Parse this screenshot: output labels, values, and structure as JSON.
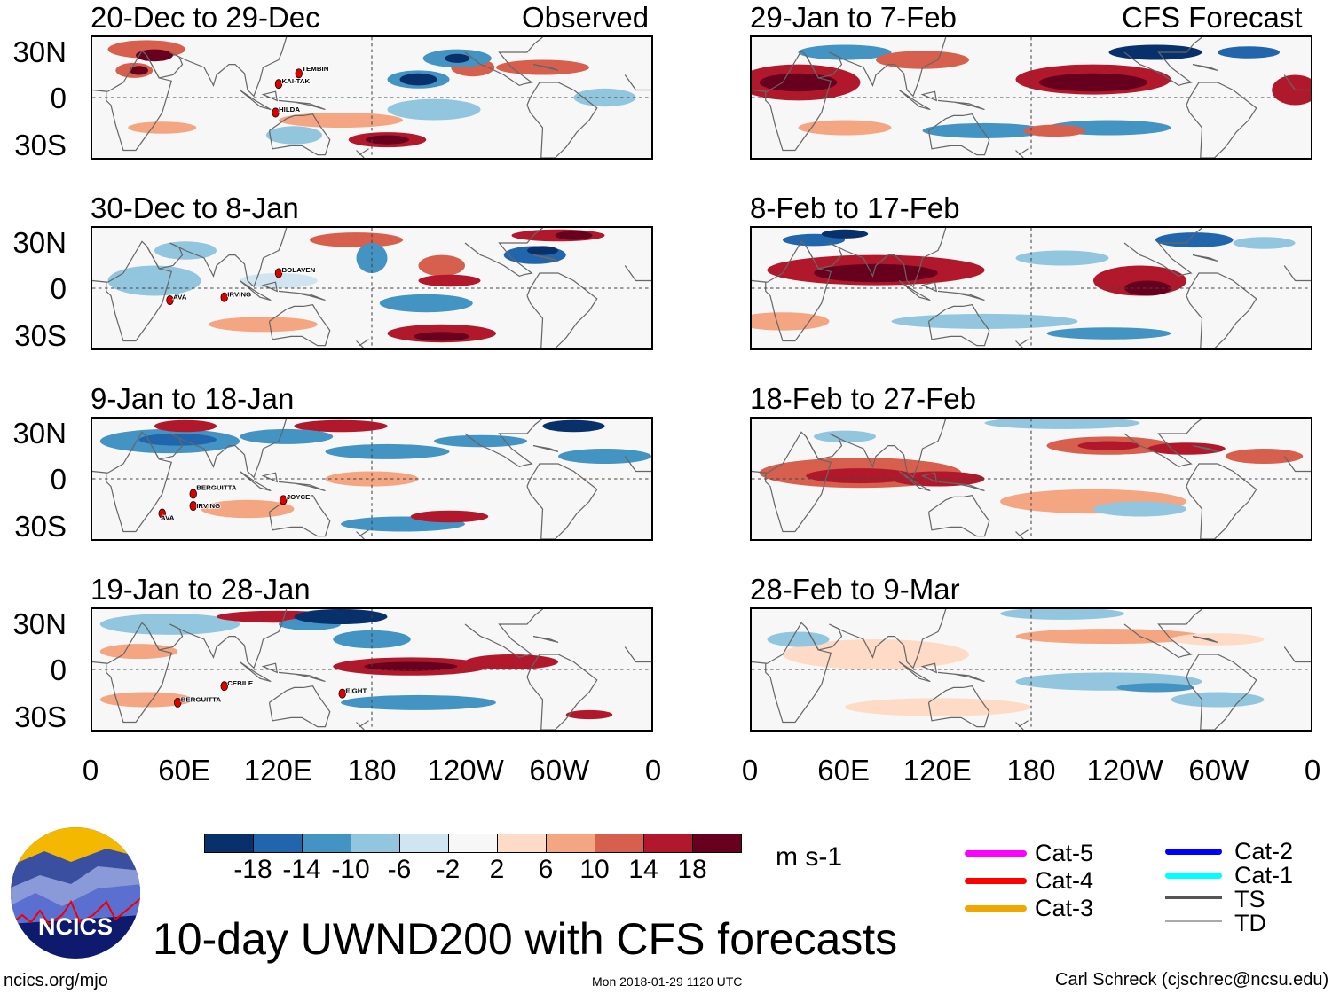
{
  "header": {
    "left_label": "Observed",
    "right_label": "CFS Forecast"
  },
  "panels": [
    {
      "title": "20-Dec to 29-Dec",
      "storms": [
        "KAI-TAK",
        "TEMBIN",
        "HILDA"
      ]
    },
    {
      "title": "30-Dec to 8-Jan",
      "storms": [
        "BOLAVEN",
        "AVA",
        "IRVING"
      ]
    },
    {
      "title": "9-Jan to 18-Jan",
      "storms": [
        "BERGUITTA",
        "IRVING",
        "AVA",
        "JOYCE"
      ]
    },
    {
      "title": "19-Jan to 28-Jan",
      "storms": [
        "CEBILE",
        "BERGUITTA",
        "EIGHT"
      ]
    },
    {
      "title": "29-Jan to 7-Feb",
      "storms": []
    },
    {
      "title": "8-Feb to 17-Feb",
      "storms": []
    },
    {
      "title": "18-Feb to 27-Feb",
      "storms": []
    },
    {
      "title": "28-Feb to 9-Mar",
      "storms": []
    }
  ],
  "lat_labels": [
    "30N",
    "0",
    "30S"
  ],
  "lon_labels": [
    "0",
    "60E",
    "120E",
    "180",
    "120W",
    "60W",
    "0"
  ],
  "colorbar": {
    "colors": [
      "#08306b",
      "#2166ac",
      "#4393c3",
      "#92c5de",
      "#d1e5f0",
      "#f7f7f7",
      "#fddbc7",
      "#f4a582",
      "#d6604d",
      "#b2182b",
      "#67001f"
    ],
    "labels": [
      "-18",
      "-14",
      "-10",
      "-6",
      "-2",
      "2",
      "6",
      "10",
      "14",
      "18"
    ],
    "units": "m s-1"
  },
  "legend": [
    {
      "label": "Cat-5",
      "color": "#ff00ff"
    },
    {
      "label": "Cat-4",
      "color": "#ff0000"
    },
    {
      "label": "Cat-3",
      "color": "#f0a800"
    },
    {
      "label": "Cat-2",
      "color": "#0000ff"
    },
    {
      "label": "Cat-1",
      "color": "#00ffff"
    },
    {
      "label": "TS",
      "color": "#555555"
    },
    {
      "label": "TD",
      "color": "#aaaaaa"
    }
  ],
  "logo": {
    "text": "NCICS"
  },
  "title": "10-day UWND200 with CFS forecasts",
  "footer": {
    "url": "ncics.org/mjo",
    "timestamp": "Mon 2018-01-29 1120 UTC",
    "credit": "Carl Schreck (cjschrec@ncsu.edu)"
  }
}
